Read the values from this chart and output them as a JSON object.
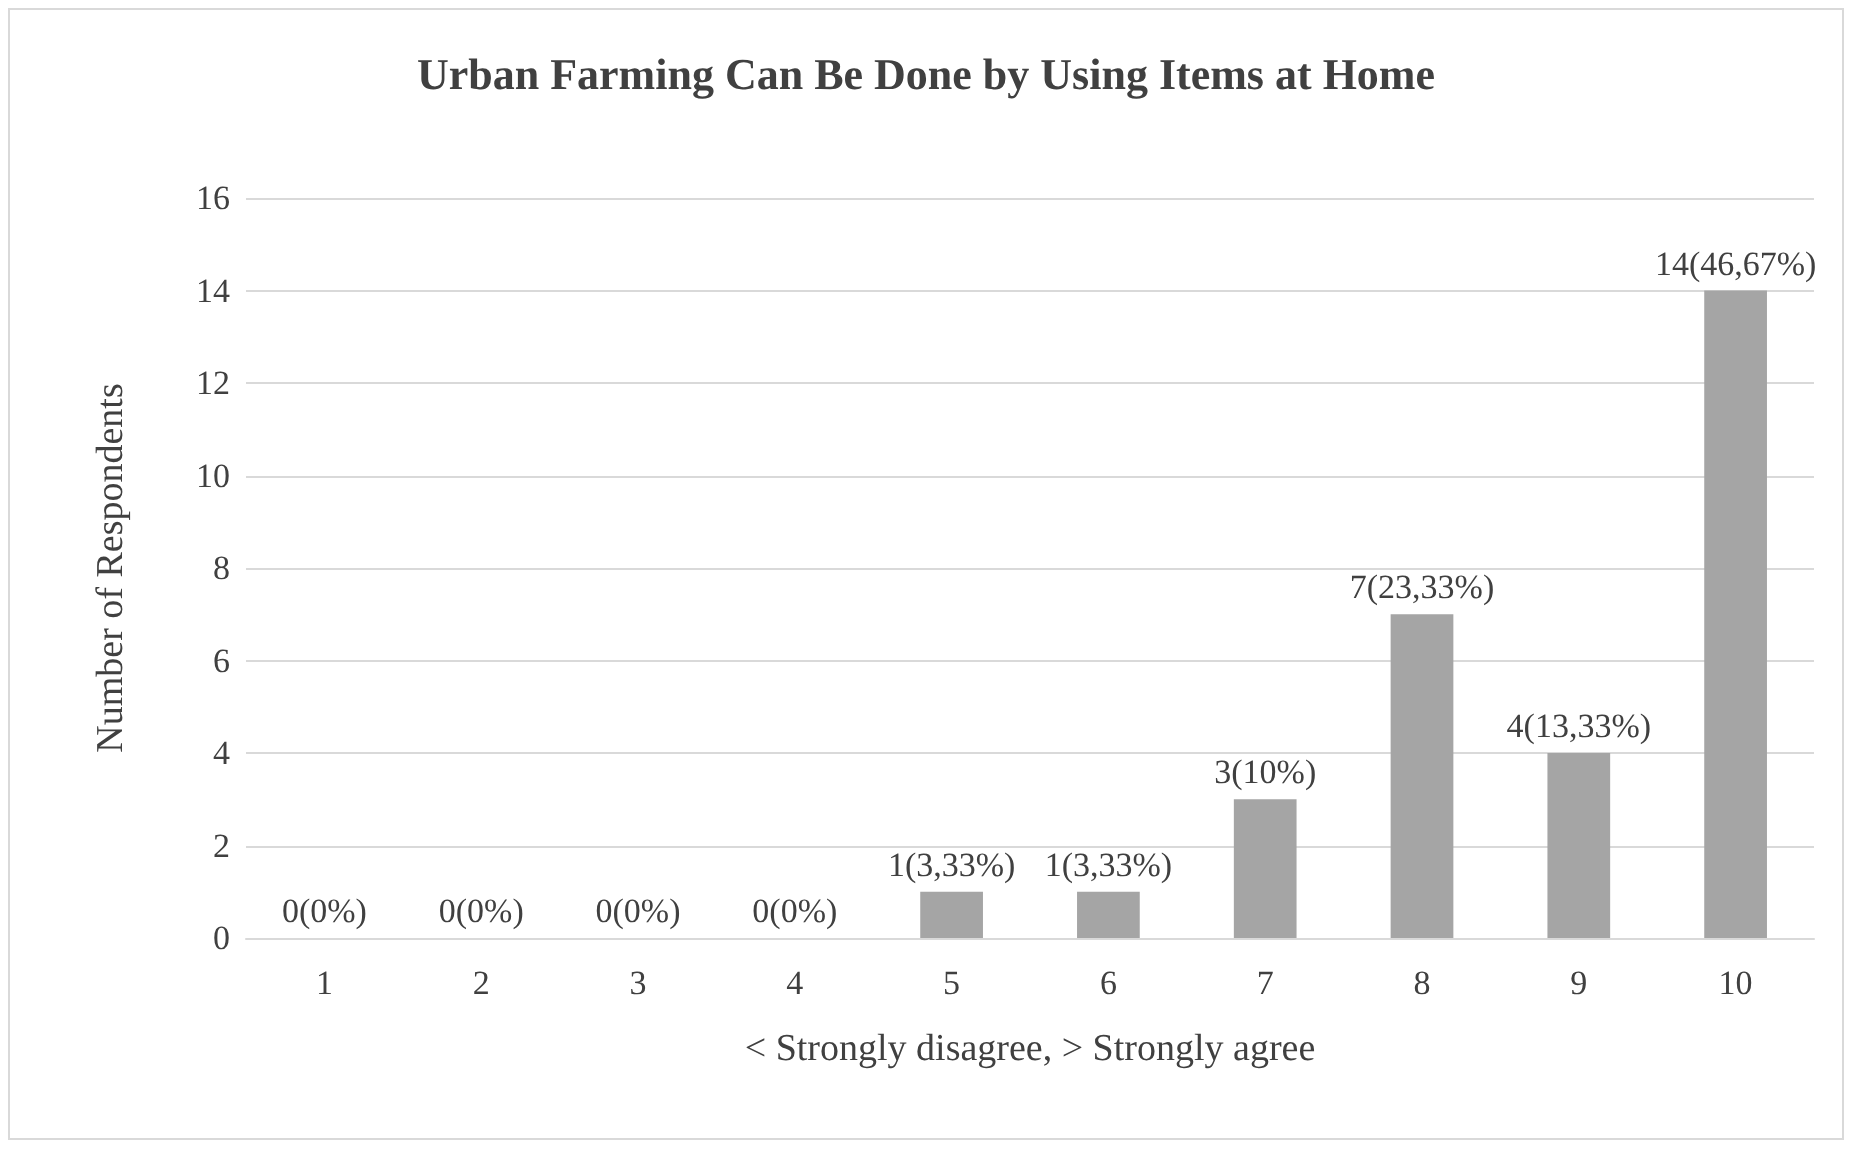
{
  "chart_data": {
    "type": "bar",
    "title": "Urban Farming Can Be Done by Using Items at Home",
    "xlabel": "< Strongly disagree, > Strongly agree",
    "ylabel": "Number of Respondents",
    "categories": [
      "1",
      "2",
      "3",
      "4",
      "5",
      "6",
      "7",
      "8",
      "9",
      "10"
    ],
    "values": [
      0,
      0,
      0,
      0,
      1,
      1,
      3,
      7,
      4,
      14
    ],
    "value_labels": [
      "0(0%)",
      "0(0%)",
      "0(0%)",
      "0(0%)",
      "1(3,33%)",
      "1(3,33%)",
      "3(10%)",
      "7(23,33%)",
      "4(13,33%)",
      "14(46,67%)"
    ],
    "color": "#a5a5a5",
    "ylim": [
      0,
      16
    ],
    "yticks": [
      0,
      2,
      4,
      6,
      8,
      10,
      12,
      14,
      16
    ],
    "grid": "y"
  }
}
